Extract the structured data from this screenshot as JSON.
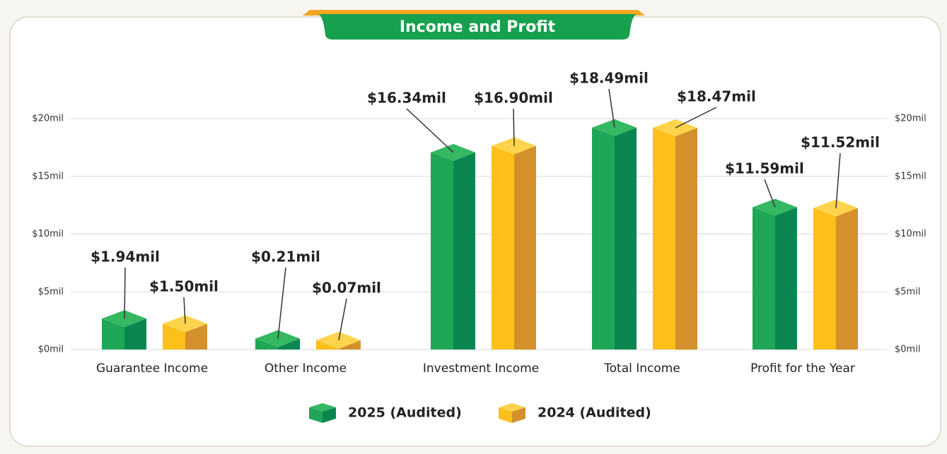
{
  "chart_data": {
    "type": "bar3d",
    "title": "Income and Profit",
    "categories": [
      "Guarantee Income",
      "Other Income",
      "Investment Income",
      "Total Income",
      "Profit for the Year"
    ],
    "series": [
      {
        "name": "2025 (Audited)",
        "color": "#15a050",
        "values": [
          1.94,
          0.21,
          16.34,
          18.49,
          11.59
        ],
        "value_labels": [
          "$1.94mil",
          "$0.21mil",
          "$16.34mil",
          "$18.49mil",
          "$11.59mil"
        ]
      },
      {
        "name": "2024 (Audited)",
        "color": "#fbbd16",
        "values": [
          1.5,
          0.07,
          16.9,
          18.47,
          11.52
        ],
        "value_labels": [
          "$1.50mil",
          "$0.07mil",
          "$16.90mil",
          "$18.47mil",
          "$11.52mil"
        ]
      }
    ],
    "ylim": [
      0,
      20
    ],
    "yticks": [
      {
        "value": 0,
        "label": "$0mil"
      },
      {
        "value": 5,
        "label": "$5mil"
      },
      {
        "value": 10,
        "label": "$10mil"
      },
      {
        "value": 15,
        "label": "$15mil"
      },
      {
        "value": 20,
        "label": "$20mil"
      }
    ],
    "grid": true
  }
}
